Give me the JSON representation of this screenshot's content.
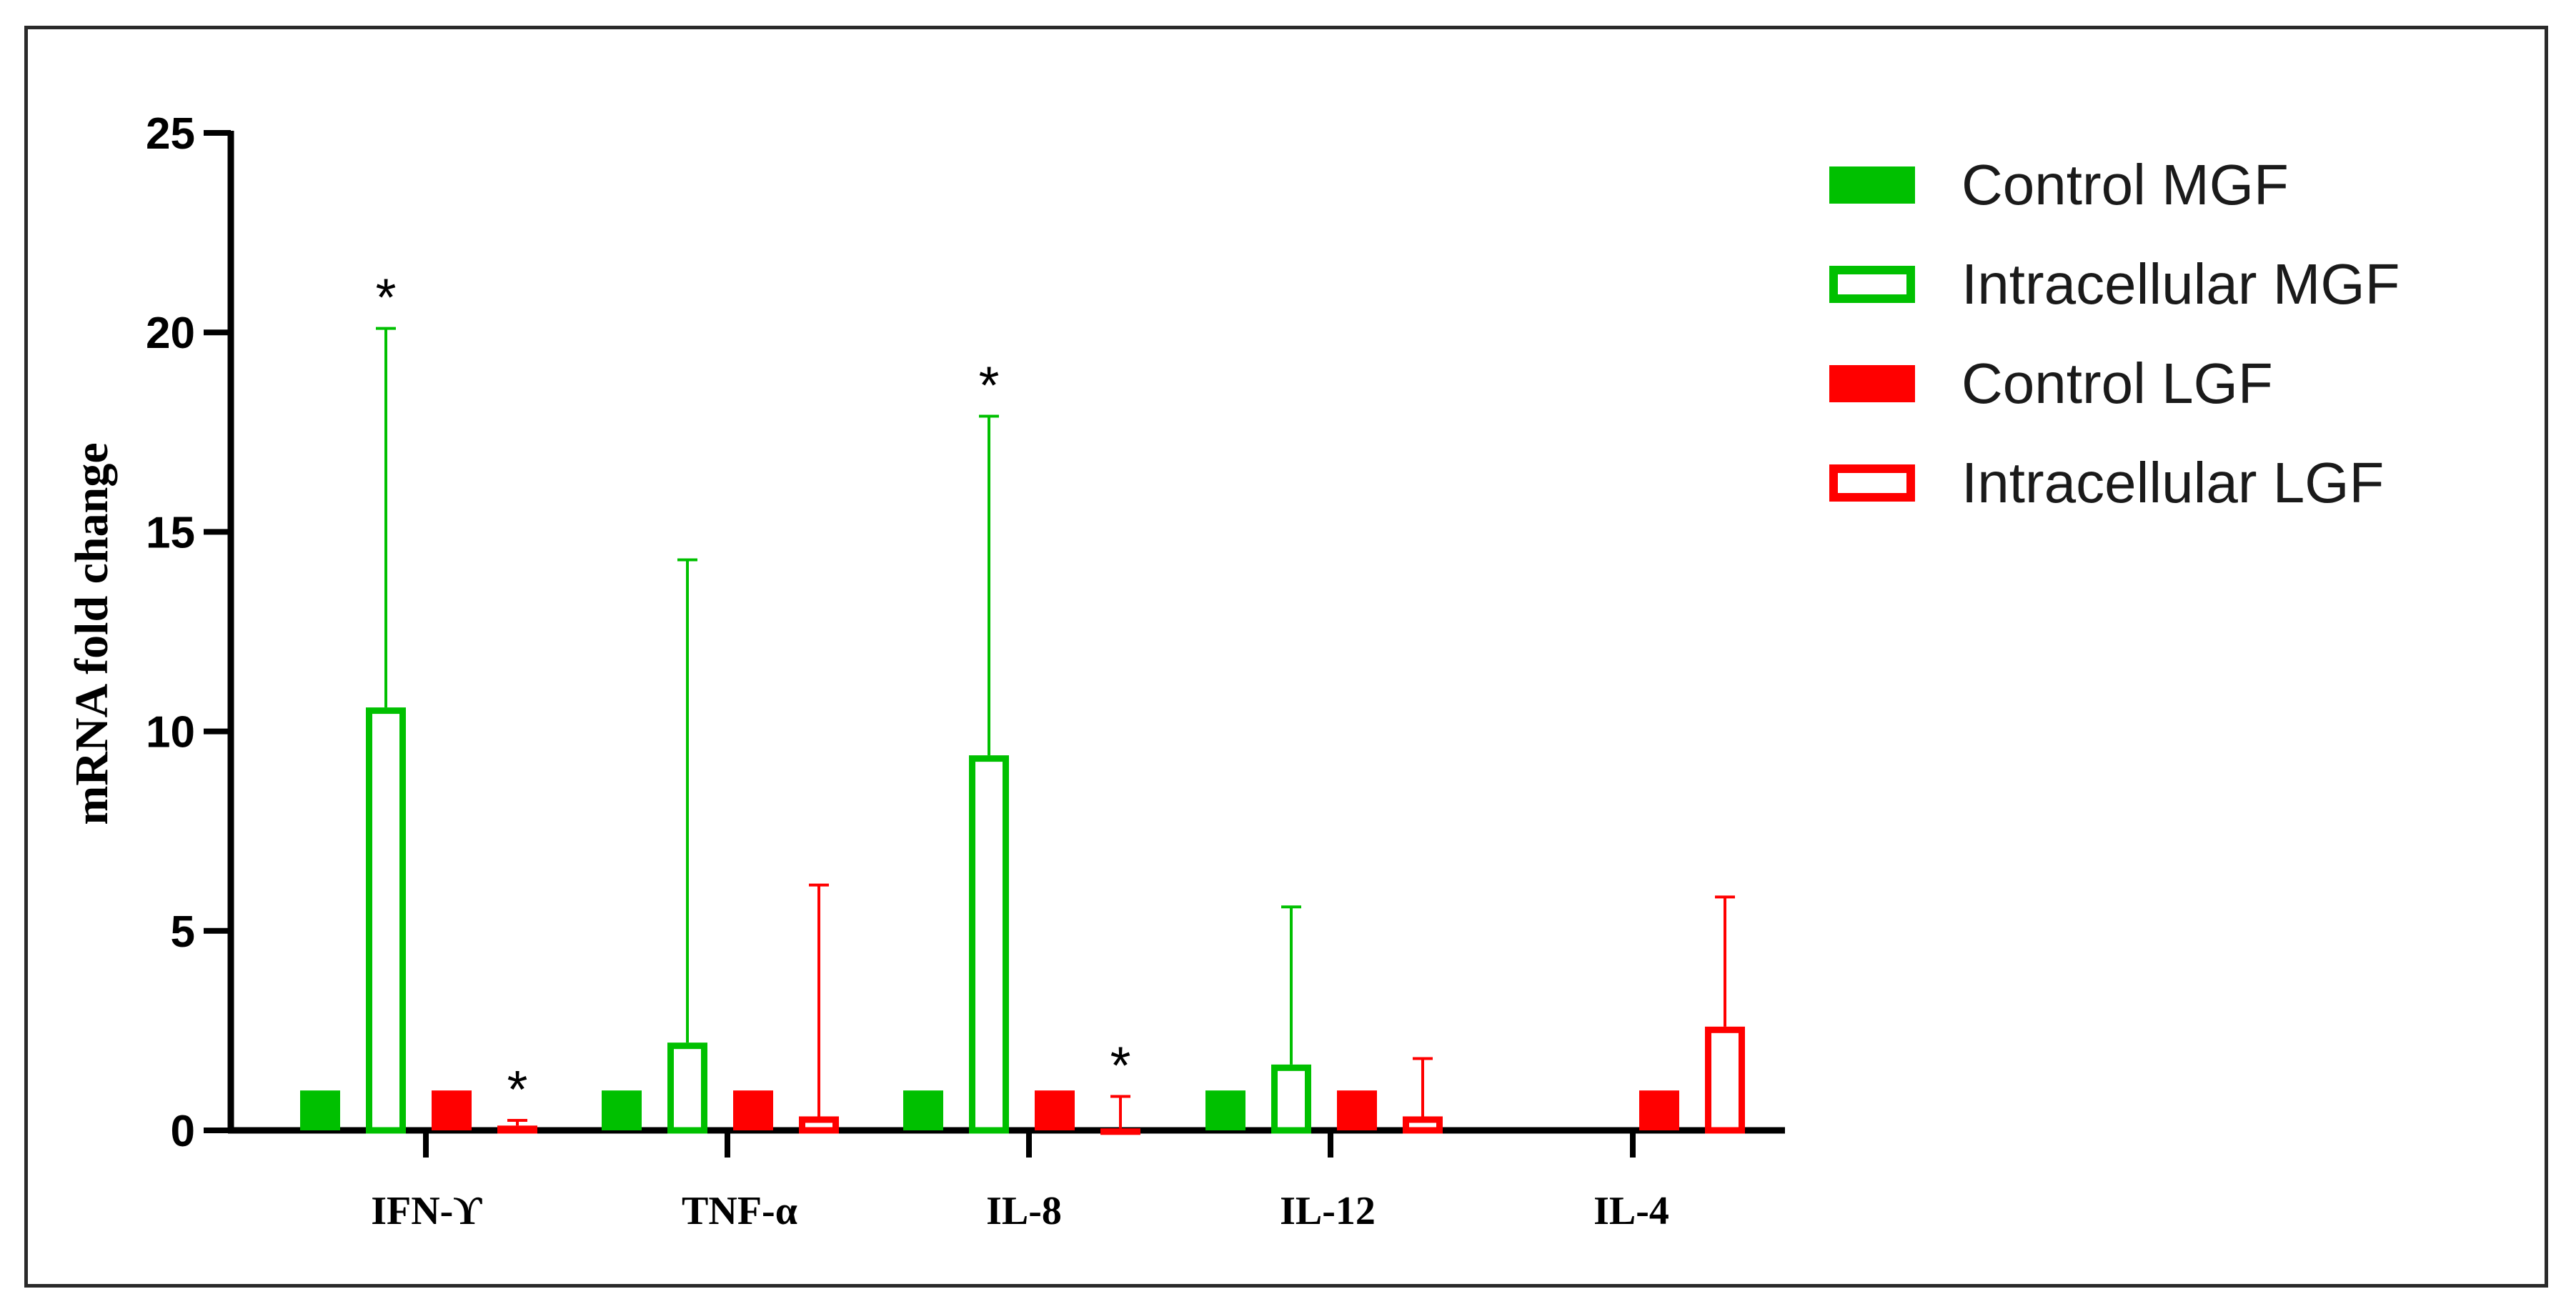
{
  "chart_data": {
    "type": "bar",
    "ylabel": "mRNA fold change",
    "xlabel": "",
    "ylim": [
      0,
      25
    ],
    "yticks": [
      "0",
      "5",
      "10",
      "15",
      "20",
      "25"
    ],
    "categories": [
      "IFN-ϒ",
      "TNF-α",
      "IL-8",
      "IL-12",
      "IL-4"
    ],
    "series": [
      {
        "name": "Control MGF",
        "color": "#00c000",
        "filled": true,
        "values": [
          1,
          1,
          1,
          1,
          null
        ],
        "errors": [
          null,
          null,
          null,
          null,
          null
        ]
      },
      {
        "name": "Intracellular MGF",
        "color": "#00c000",
        "filled": false,
        "values": [
          10.6,
          2.2,
          9.4,
          1.65,
          null
        ],
        "errors": [
          20.1,
          14.3,
          17.9,
          5.6,
          null
        ]
      },
      {
        "name": "Control LGF",
        "color": "#ff0000",
        "filled": true,
        "values": [
          1,
          1,
          1,
          1,
          1
        ],
        "errors": [
          null,
          null,
          null,
          null,
          null
        ]
      },
      {
        "name": "Intracellular LGF",
        "color": "#ff0000",
        "filled": false,
        "values": [
          0.12,
          0.35,
          0.05,
          0.35,
          2.6
        ],
        "errors": [
          0.25,
          6.15,
          0.85,
          1.8,
          5.85
        ]
      }
    ],
    "annotations": [
      {
        "text": "*",
        "category": "IFN-ϒ",
        "series": "Intracellular MGF"
      },
      {
        "text": "*",
        "category": "IFN-ϒ",
        "series": "Intracellular LGF"
      },
      {
        "text": "*",
        "category": "IL-8",
        "series": "Intracellular MGF"
      },
      {
        "text": "*",
        "category": "IL-8",
        "series": "Intracellular LGF"
      }
    ],
    "legend_position": "top-right",
    "grid": false
  }
}
